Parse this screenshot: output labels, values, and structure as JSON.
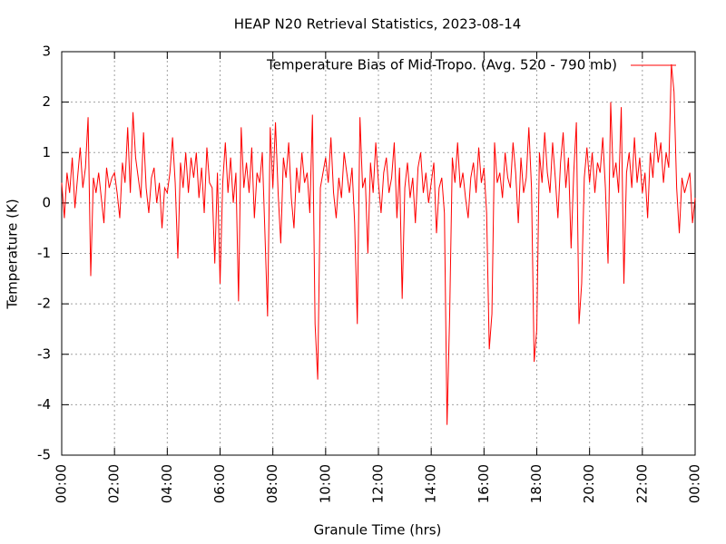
{
  "chart_data": {
    "type": "line",
    "title": "HEAP N20 Retrieval Statistics, 2023-08-14",
    "x_label": "Granule Time (hrs)",
    "y_label": "Temperature (K)",
    "xlim": [
      0,
      24
    ],
    "xticks": [
      {
        "value": 0,
        "label": "00:00"
      },
      {
        "value": 2,
        "label": "02:00"
      },
      {
        "value": 4,
        "label": "04:00"
      },
      {
        "value": 6,
        "label": "06:00"
      },
      {
        "value": 8,
        "label": "08:00"
      },
      {
        "value": 10,
        "label": "10:00"
      },
      {
        "value": 12,
        "label": "12:00"
      },
      {
        "value": 14,
        "label": "14:00"
      },
      {
        "value": 16,
        "label": "16:00"
      },
      {
        "value": 18,
        "label": "18:00"
      },
      {
        "value": 20,
        "label": "20:00"
      },
      {
        "value": 22,
        "label": "22:00"
      },
      {
        "value": 24,
        "label": "00:00"
      }
    ],
    "ylim": [
      -5,
      3
    ],
    "yticks": [
      -5,
      -4,
      -3,
      -2,
      -1,
      0,
      1,
      2,
      3
    ],
    "grid": true,
    "legend": "top-right",
    "x": [
      0,
      0.1,
      0.2,
      0.3,
      0.4,
      0.5,
      0.6,
      0.7,
      0.8,
      0.9,
      1,
      1.1,
      1.2,
      1.3,
      1.4,
      1.5,
      1.6,
      1.7,
      1.8,
      1.9,
      2,
      2.1,
      2.2,
      2.3,
      2.4,
      2.5,
      2.6,
      2.7,
      2.8,
      2.9,
      3,
      3.1,
      3.2,
      3.3,
      3.4,
      3.5,
      3.6,
      3.7,
      3.8,
      3.9,
      4,
      4.1,
      4.2,
      4.3,
      4.4,
      4.5,
      4.6,
      4.7,
      4.8,
      4.9,
      5,
      5.1,
      5.2,
      5.3,
      5.4,
      5.5,
      5.6,
      5.7,
      5.8,
      5.9,
      6,
      6.1,
      6.2,
      6.3,
      6.4,
      6.5,
      6.6,
      6.7,
      6.8,
      6.9,
      7,
      7.1,
      7.2,
      7.3,
      7.4,
      7.5,
      7.6,
      7.7,
      7.8,
      7.9,
      8,
      8.1,
      8.2,
      8.3,
      8.4,
      8.5,
      8.6,
      8.7,
      8.8,
      8.9,
      9,
      9.1,
      9.2,
      9.3,
      9.4,
      9.5,
      9.6,
      9.7,
      9.8,
      9.9,
      10,
      10.1,
      10.2,
      10.3,
      10.4,
      10.5,
      10.6,
      10.7,
      10.8,
      10.9,
      11,
      11.1,
      11.2,
      11.3,
      11.4,
      11.5,
      11.6,
      11.7,
      11.8,
      11.9,
      12,
      12.1,
      12.2,
      12.3,
      12.4,
      12.5,
      12.6,
      12.7,
      12.8,
      12.9,
      13,
      13.1,
      13.2,
      13.3,
      13.4,
      13.5,
      13.6,
      13.7,
      13.8,
      13.9,
      14,
      14.1,
      14.2,
      14.3,
      14.4,
      14.5,
      14.6,
      14.7,
      14.8,
      14.9,
      15,
      15.1,
      15.2,
      15.3,
      15.4,
      15.5,
      15.6,
      15.7,
      15.8,
      15.9,
      16,
      16.1,
      16.2,
      16.3,
      16.4,
      16.5,
      16.6,
      16.7,
      16.8,
      16.9,
      17,
      17.1,
      17.2,
      17.3,
      17.4,
      17.5,
      17.6,
      17.7,
      17.8,
      17.9,
      18,
      18.1,
      18.2,
      18.3,
      18.4,
      18.5,
      18.6,
      18.7,
      18.8,
      18.9,
      19,
      19.1,
      19.2,
      19.3,
      19.4,
      19.5,
      19.6,
      19.7,
      19.8,
      19.9,
      20,
      20.1,
      20.2,
      20.3,
      20.4,
      20.5,
      20.6,
      20.7,
      20.8,
      20.9,
      21,
      21.1,
      21.2,
      21.3,
      21.4,
      21.5,
      21.6,
      21.7,
      21.8,
      21.9,
      22,
      22.1,
      22.2,
      22.3,
      22.4,
      22.5,
      22.6,
      22.7,
      22.8,
      22.9,
      23,
      23.1,
      23.2,
      23.3,
      23.4,
      23.5,
      23.6,
      23.7,
      23.8,
      23.9,
      24
    ],
    "series": [
      {
        "name": "Temperature Bias of Mid-Tropo. (Avg. 520 - 790 mb)",
        "color": "#ff0000",
        "values": [
          0.4,
          -0.3,
          0.6,
          0.2,
          0.9,
          -0.1,
          0.5,
          1.1,
          0.3,
          0.7,
          1.7,
          -1.45,
          0.5,
          0.2,
          0.6,
          0.1,
          -0.4,
          0.7,
          0.3,
          0.5,
          0.6,
          0.2,
          -0.3,
          0.8,
          0.4,
          1.5,
          0.2,
          1.8,
          0.9,
          0.5,
          0.1,
          1.4,
          0.3,
          -0.2,
          0.5,
          0.7,
          0.0,
          0.4,
          -0.5,
          0.3,
          0.2,
          0.6,
          1.3,
          0.4,
          -1.1,
          0.8,
          0.3,
          1.0,
          0.2,
          0.9,
          0.5,
          1.0,
          0.1,
          0.7,
          -0.2,
          1.1,
          0.4,
          0.3,
          -1.2,
          0.6,
          -1.6,
          0.4,
          1.2,
          0.2,
          0.9,
          0.0,
          0.6,
          -1.95,
          1.5,
          0.3,
          0.8,
          0.2,
          1.1,
          -0.3,
          0.6,
          0.4,
          1.0,
          -0.6,
          -2.25,
          1.5,
          0.3,
          1.6,
          0.2,
          -0.8,
          0.9,
          0.5,
          1.2,
          0.1,
          -0.5,
          0.7,
          0.2,
          1.0,
          0.4,
          0.6,
          -0.2,
          1.75,
          -2.4,
          -3.5,
          0.3,
          0.6,
          0.9,
          0.4,
          1.3,
          0.2,
          -0.3,
          0.5,
          0.1,
          1.0,
          0.6,
          0.2,
          0.7,
          -0.4,
          -2.4,
          1.7,
          0.3,
          0.5,
          -1.0,
          0.8,
          0.2,
          1.2,
          0.4,
          -0.2,
          0.6,
          0.9,
          0.2,
          0.5,
          1.2,
          -0.3,
          0.7,
          -1.9,
          0.3,
          0.8,
          0.1,
          0.5,
          -0.4,
          0.7,
          1.0,
          0.2,
          0.6,
          0.0,
          0.4,
          0.8,
          -0.6,
          0.3,
          0.5,
          -0.2,
          -4.4,
          -2.2,
          0.9,
          0.4,
          1.2,
          0.3,
          0.6,
          0.1,
          -0.3,
          0.5,
          0.8,
          0.2,
          1.1,
          0.4,
          0.7,
          -0.2,
          -2.9,
          -2.2,
          1.2,
          0.4,
          0.6,
          0.1,
          1.0,
          0.5,
          0.3,
          1.2,
          0.6,
          -0.4,
          0.9,
          0.2,
          0.5,
          1.5,
          0.3,
          -3.15,
          -2.5,
          1.0,
          0.4,
          1.4,
          0.6,
          0.2,
          1.2,
          0.5,
          -0.3,
          0.8,
          1.4,
          0.3,
          0.9,
          -0.9,
          0.6,
          1.6,
          -2.4,
          -1.6,
          0.5,
          1.1,
          0.4,
          1.0,
          0.2,
          0.8,
          0.6,
          1.3,
          0.3,
          -1.2,
          2.0,
          0.5,
          0.8,
          0.2,
          1.9,
          -1.6,
          0.6,
          1.0,
          0.3,
          1.3,
          0.4,
          0.9,
          0.2,
          0.6,
          -0.3,
          1.0,
          0.5,
          1.4,
          0.8,
          1.2,
          0.4,
          1.0,
          0.7,
          2.75,
          2.2,
          0.3,
          -0.6,
          0.5,
          0.2,
          0.4,
          0.6,
          -0.4,
          0.1
        ]
      }
    ]
  }
}
